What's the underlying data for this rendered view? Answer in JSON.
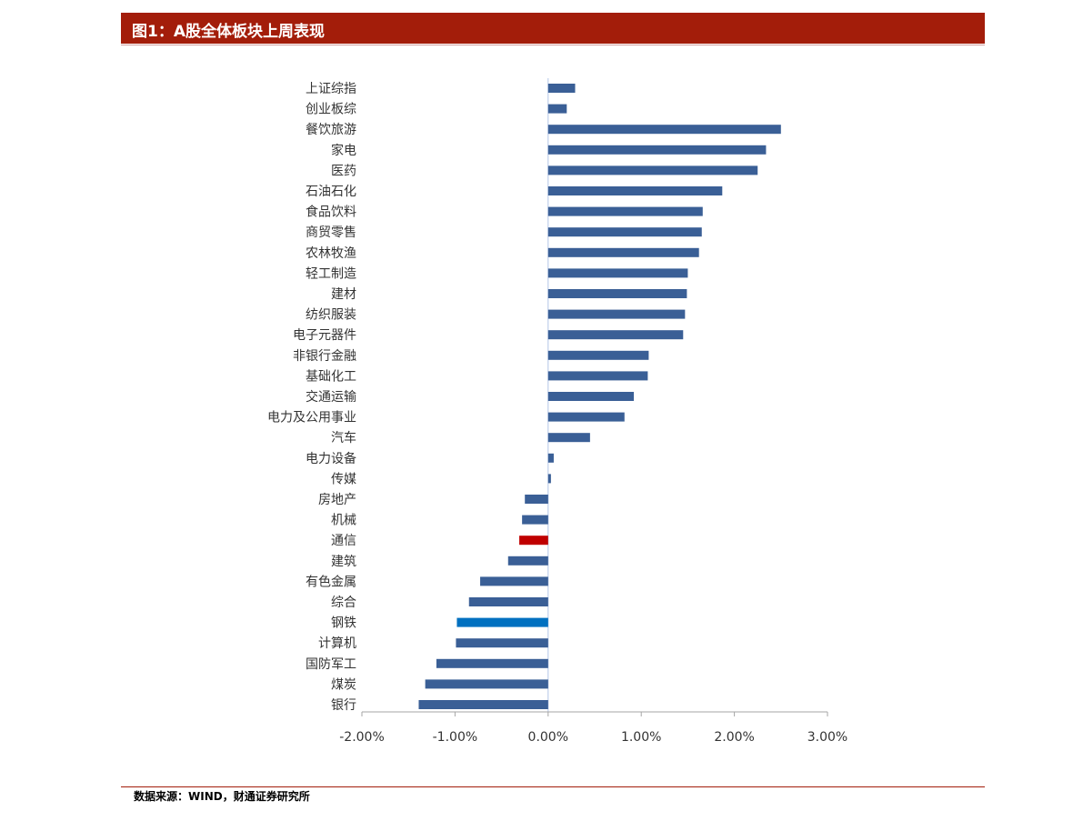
{
  "header": {
    "title": "图1：A股全体板块上周表现"
  },
  "footer": {
    "source": "数据来源：WIND，财通证券研究所"
  },
  "colors": {
    "bar_default": "#3a5f96",
    "bar_highlight_red": "#c00000",
    "bar_highlight_blue": "#0070c0",
    "title_bg": "#a31d0a"
  },
  "chart_data": {
    "type": "bar",
    "orientation": "horizontal",
    "categories": [
      "上证综指",
      "创业板综",
      "餐饮旅游",
      "家电",
      "医药",
      "石油石化",
      "食品饮料",
      "商贸零售",
      "农林牧渔",
      "轻工制造",
      "建材",
      "纺织服装",
      "电子元器件",
      "非银行金融",
      "基础化工",
      "交通运输",
      "电力及公用事业",
      "汽车",
      "电力设备",
      "传媒",
      "房地产",
      "机械",
      "通信",
      "建筑",
      "有色金属",
      "综合",
      "钢铁",
      "计算机",
      "国防军工",
      "煤炭",
      "银行"
    ],
    "values": [
      0.29,
      0.2,
      2.5,
      2.34,
      2.25,
      1.87,
      1.66,
      1.65,
      1.62,
      1.5,
      1.49,
      1.47,
      1.45,
      1.08,
      1.07,
      0.92,
      0.82,
      0.45,
      0.06,
      0.03,
      -0.25,
      -0.28,
      -0.31,
      -0.43,
      -0.73,
      -0.85,
      -0.98,
      -0.99,
      -1.2,
      -1.32,
      -1.39
    ],
    "highlight": {
      "通信": "#c00000",
      "钢铁": "#0070c0"
    },
    "xlim": [
      -2.0,
      3.0
    ],
    "xticks": [
      "-2.00%",
      "-1.00%",
      "0.00%",
      "1.00%",
      "2.00%",
      "3.00%"
    ],
    "unit": "%",
    "grid": false,
    "legend": false
  }
}
